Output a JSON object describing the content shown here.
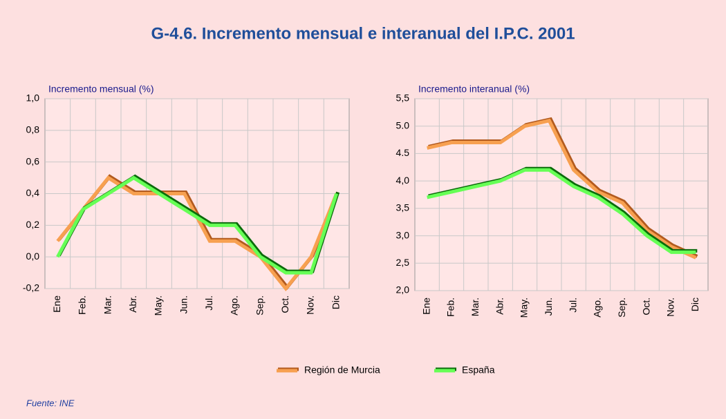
{
  "title": "G-4.6. Incremento mensual e interanual del I.P.C. 2001",
  "source": "Fuente: INE",
  "chart_data": [
    {
      "type": "line",
      "y_label": "Incremento mensual (%)",
      "categories": [
        "Ene",
        "Feb.",
        "Mar.",
        "Abr.",
        "May.",
        "Jun.",
        "Jul.",
        "Ago.",
        "Sep.",
        "Oct.",
        "Nov.",
        "Dic"
      ],
      "ylim": [
        -0.2,
        1
      ],
      "yticks": [
        {
          "value": -0.2,
          "label": "-0,2"
        },
        {
          "value": 0,
          "label": "0,0"
        },
        {
          "value": 0.2,
          "label": "0,2"
        },
        {
          "value": 0.4,
          "label": "0,4"
        },
        {
          "value": 0.6,
          "label": "0,6"
        },
        {
          "value": 0.8,
          "label": "0,8"
        },
        {
          "value": 1,
          "label": "1,0"
        }
      ],
      "grid": true,
      "series": [
        {
          "name": "Región de Murcia",
          "color": "#f7a050",
          "shadow_color": "#b25a1e",
          "values": [
            0.1,
            0.3,
            0.5,
            0.4,
            0.4,
            0.4,
            0.1,
            0.1,
            0.0,
            -0.2,
            0.0,
            0.4
          ]
        },
        {
          "name": "España",
          "color": "#66ff55",
          "shadow_color": "#0b6b0b",
          "values": [
            0.0,
            0.3,
            0.4,
            0.5,
            0.4,
            0.3,
            0.2,
            0.2,
            0.0,
            -0.1,
            -0.1,
            0.4
          ]
        }
      ]
    },
    {
      "type": "line",
      "y_label": "Incremento interanual (%)",
      "categories": [
        "Ene",
        "Feb.",
        "Mar.",
        "Abr.",
        "May.",
        "Jun.",
        "Jul.",
        "Ago.",
        "Sep.",
        "Oct.",
        "Nov.",
        "Dic"
      ],
      "ylim": [
        2,
        5.5
      ],
      "yticks": [
        {
          "value": 2,
          "label": "2,0"
        },
        {
          "value": 2.5,
          "label": "2,5"
        },
        {
          "value": 3,
          "label": "3,0"
        },
        {
          "value": 3.5,
          "label": "3,5"
        },
        {
          "value": 4,
          "label": "4,0"
        },
        {
          "value": 4.5,
          "label": "4.5"
        },
        {
          "value": 5,
          "label": "5.0"
        },
        {
          "value": 5.5,
          "label": "5,5"
        }
      ],
      "grid": true,
      "series": [
        {
          "color": "#f7a050",
          "shadow_color": "#b25a1e",
          "values": [
            4.6,
            4.7,
            4.7,
            4.7,
            5.0,
            5.1,
            4.2,
            3.8,
            3.6,
            3.1,
            2.8,
            2.6
          ]
        },
        {
          "color": "#66ff55",
          "shadow_color": "#0b6b0b",
          "values": [
            3.7,
            3.8,
            3.9,
            4.0,
            4.2,
            4.2,
            3.9,
            3.7,
            3.4,
            3.0,
            2.7,
            2.7
          ]
        }
      ]
    }
  ]
}
